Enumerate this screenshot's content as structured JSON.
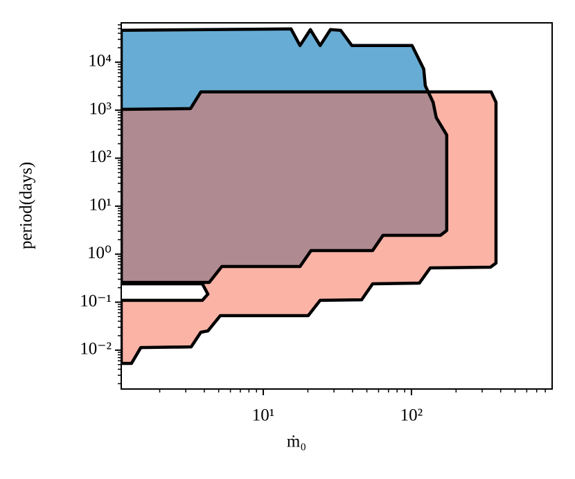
{
  "chart_data": {
    "type": "region",
    "xlabel": "ṁ₀",
    "ylabel": "period(days)",
    "xscale": "log",
    "yscale": "log",
    "xlim": [
      1.1,
      890
    ],
    "ylim": [
      0.00155,
      66000
    ],
    "xticks": [
      {
        "value": 10,
        "label": "10¹"
      },
      {
        "value": 100,
        "label": "10²"
      }
    ],
    "yticks": [
      {
        "value": 0.01,
        "label": "10⁻²"
      },
      {
        "value": 0.1,
        "label": "10⁻¹"
      },
      {
        "value": 1,
        "label": "10⁰"
      },
      {
        "value": 10,
        "label": "10¹"
      },
      {
        "value": 100,
        "label": "10²"
      },
      {
        "value": 1000,
        "label": "10³"
      },
      {
        "value": 10000,
        "label": "10⁴"
      }
    ],
    "xminorticks": [
      2,
      3,
      4,
      5,
      6,
      7,
      8,
      9,
      20,
      30,
      40,
      50,
      60,
      70,
      80,
      90,
      200,
      300,
      400,
      500,
      600,
      700,
      800
    ],
    "yminorticks": [
      0.002,
      0.003,
      0.004,
      0.005,
      0.006,
      0.007,
      0.008,
      0.009,
      0.02,
      0.03,
      0.04,
      0.05,
      0.06,
      0.07,
      0.08,
      0.09,
      0.2,
      0.3,
      0.4,
      0.5,
      0.6,
      0.7,
      0.8,
      0.9,
      2,
      3,
      4,
      5,
      6,
      7,
      8,
      9,
      20,
      30,
      40,
      50,
      60,
      70,
      80,
      90,
      200,
      300,
      400,
      500,
      600,
      700,
      800,
      900,
      2000,
      3000,
      4000,
      5000,
      6000,
      7000,
      8000,
      9000,
      20000,
      30000,
      40000,
      50000,
      60000
    ],
    "edgecolor": "#000000",
    "series": [
      {
        "color": "#67acd4",
        "alpha": 1,
        "x": [
          1.1,
          15.4,
          17.7,
          20.8,
          24.2,
          28.4,
          33.3,
          39.6,
          101,
          121,
          124,
          140,
          147,
          173,
          173,
          157,
          64.3,
          54.7,
          21.0,
          17.7,
          5.25,
          4.32,
          1.1
        ],
        "y": [
          46100,
          49300,
          22200,
          47700,
          22200,
          47700,
          46100,
          22200,
          22200,
          7180,
          3230,
          1460,
          701,
          305,
          3.12,
          2.47,
          2.47,
          1.19,
          1.19,
          0.553,
          0.553,
          0.258,
          0.258
        ]
      },
      {
        "color": "#f7674d",
        "alpha": 0.5,
        "x": [
          1.1,
          3.23,
          3.79,
          345,
          372,
          372,
          341,
          134,
          113,
          54.7,
          46.1,
          24.2,
          20.1,
          5.13,
          4.23,
          3.79,
          3.26,
          1.49,
          1.29,
          1.1,
          1.1,
          3.88,
          4.23,
          3.88,
          1.1
        ],
        "y": [
          1040,
          1080,
          2400,
          2400,
          1460,
          0.653,
          0.535,
          0.518,
          0.249,
          0.241,
          0.112,
          0.109,
          0.0524,
          0.0524,
          0.0252,
          0.0236,
          0.0117,
          0.0113,
          0.00529,
          0.00529,
          0.109,
          0.109,
          0.147,
          0.241,
          0.241
        ]
      }
    ]
  }
}
